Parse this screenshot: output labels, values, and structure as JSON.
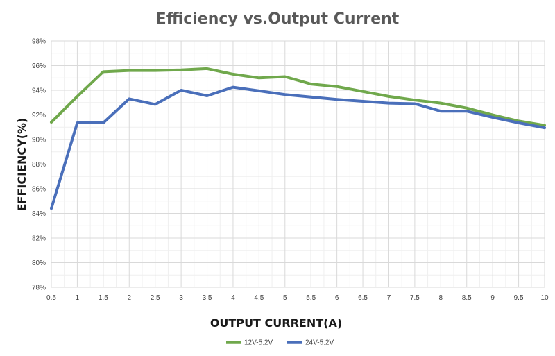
{
  "chart_data": {
    "type": "line",
    "title": "Efficiency vs.Output Current",
    "xlabel": "OUTPUT CURRENT(A)",
    "ylabel": "EFFICIENCY(%)",
    "x": [
      0.5,
      1,
      1.5,
      2,
      2.5,
      3,
      3.5,
      4,
      4.5,
      5,
      5.5,
      6,
      6.5,
      7,
      7.5,
      8,
      8.5,
      9,
      9.5,
      10
    ],
    "x_tick_labels": [
      "0.5",
      "1",
      "1.5",
      "2",
      "2.5",
      "3",
      "3.5",
      "4",
      "4.5",
      "5",
      "5.5",
      "6",
      "6.5",
      "7",
      "7.5",
      "8",
      "8.5",
      "9",
      "9.5",
      "10"
    ],
    "ylim": [
      78,
      98
    ],
    "y_ticks": [
      78,
      80,
      82,
      84,
      86,
      88,
      90,
      92,
      94,
      96,
      98
    ],
    "y_tick_labels": [
      "78%",
      "80%",
      "82%",
      "84%",
      "86%",
      "88%",
      "90%",
      "92%",
      "94%",
      "96%",
      "98%"
    ],
    "grid": true,
    "legend_position": "bottom",
    "series": [
      {
        "name": "12V-5.2V",
        "color": "#70a84c",
        "values": [
          91.4,
          93.5,
          95.5,
          95.6,
          95.6,
          95.65,
          95.75,
          95.3,
          95.0,
          95.1,
          94.5,
          94.3,
          93.9,
          93.5,
          93.2,
          92.95,
          92.55,
          92.0,
          91.5,
          91.15
        ]
      },
      {
        "name": "24V-5.2V",
        "color": "#4a6fba",
        "values": [
          84.4,
          91.35,
          91.35,
          93.3,
          92.85,
          94.0,
          93.55,
          94.25,
          93.95,
          93.65,
          93.45,
          93.25,
          93.1,
          92.95,
          92.9,
          92.3,
          92.3,
          91.8,
          91.35,
          90.95
        ]
      }
    ]
  }
}
